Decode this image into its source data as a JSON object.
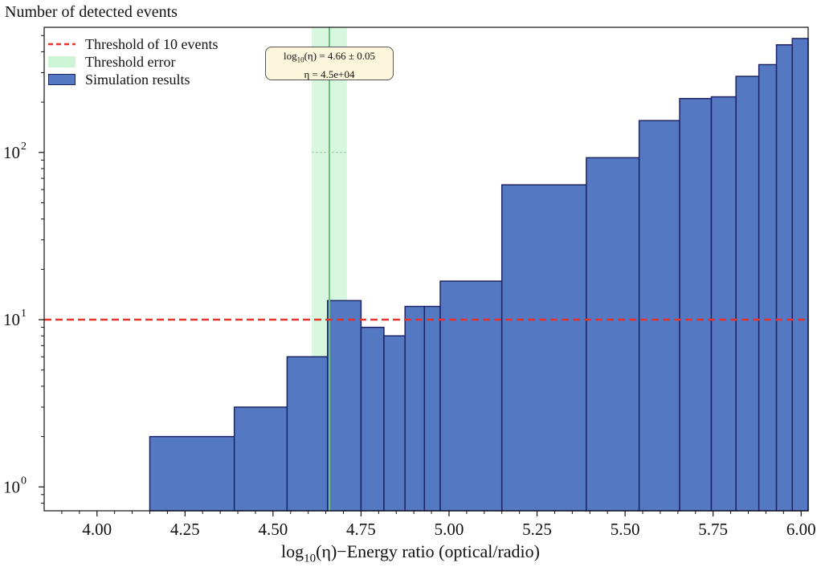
{
  "chart_data": {
    "type": "bar",
    "title": "",
    "ylabel": "Number of detected events",
    "xlabel": "log10(η)−Energy ratio (optical/radio)",
    "xlabel_parts": {
      "pre": "log",
      "sub": "10",
      "post": "(η)−Energy ratio (optical/radio)"
    },
    "yscale": "log",
    "xlim": [
      3.85,
      6.02
    ],
    "ylim": [
      0.72,
      560
    ],
    "x_ticks": [
      "4.00",
      "4.25",
      "4.50",
      "4.75",
      "5.00",
      "5.25",
      "5.50",
      "5.75",
      "6.00"
    ],
    "x_tick_values": [
      4.0,
      4.25,
      4.5,
      4.75,
      5.0,
      5.25,
      5.5,
      5.75,
      6.0
    ],
    "y_ticks": [
      {
        "value": 1,
        "base": "10",
        "exp": "0"
      },
      {
        "value": 10,
        "base": "10",
        "exp": "1"
      },
      {
        "value": 100,
        "base": "10",
        "exp": "2"
      }
    ],
    "bins": [
      {
        "x0": 4.15,
        "x1": 4.39,
        "count": 2
      },
      {
        "x0": 4.39,
        "x1": 4.54,
        "count": 3
      },
      {
        "x0": 4.54,
        "x1": 4.655,
        "count": 6
      },
      {
        "x0": 4.655,
        "x1": 4.75,
        "count": 13
      },
      {
        "x0": 4.75,
        "x1": 4.815,
        "count": 9
      },
      {
        "x0": 4.815,
        "x1": 4.875,
        "count": 8
      },
      {
        "x0": 4.875,
        "x1": 4.93,
        "count": 12
      },
      {
        "x0": 4.93,
        "x1": 4.975,
        "count": 12
      },
      {
        "x0": 4.975,
        "x1": 5.15,
        "count": 17
      },
      {
        "x0": 5.15,
        "x1": 5.39,
        "count": 64
      },
      {
        "x0": 5.39,
        "x1": 5.54,
        "count": 93
      },
      {
        "x0": 5.54,
        "x1": 5.655,
        "count": 155
      },
      {
        "x0": 5.655,
        "x1": 5.745,
        "count": 210
      },
      {
        "x0": 5.745,
        "x1": 5.815,
        "count": 215
      },
      {
        "x0": 5.815,
        "x1": 5.88,
        "count": 285
      },
      {
        "x0": 5.88,
        "x1": 5.93,
        "count": 335
      },
      {
        "x0": 5.93,
        "x1": 5.975,
        "count": 440
      },
      {
        "x0": 5.975,
        "x1": 6.02,
        "count": 480
      }
    ],
    "threshold": {
      "value": 10,
      "label": "Threshold of 10 events"
    },
    "threshold_crossing": {
      "center": 4.66,
      "error": 0.05
    },
    "threshold_error_label": "Threshold error",
    "series_label": "Simulation results",
    "annotation": {
      "line1_pre": "log",
      "line1_sub": "10",
      "line1_post": "(η) = 4.66 ± 0.05",
      "line2": "η = 4.5e+04"
    },
    "colors": {
      "bar_fill": "#5479c2",
      "bar_edge": "#1c2466",
      "threshold": "#e8322b",
      "error_band": "#b8f0c4",
      "center_line": "#6fbf7f",
      "annotation_bg": "#fcf7dc"
    },
    "grid": false
  }
}
